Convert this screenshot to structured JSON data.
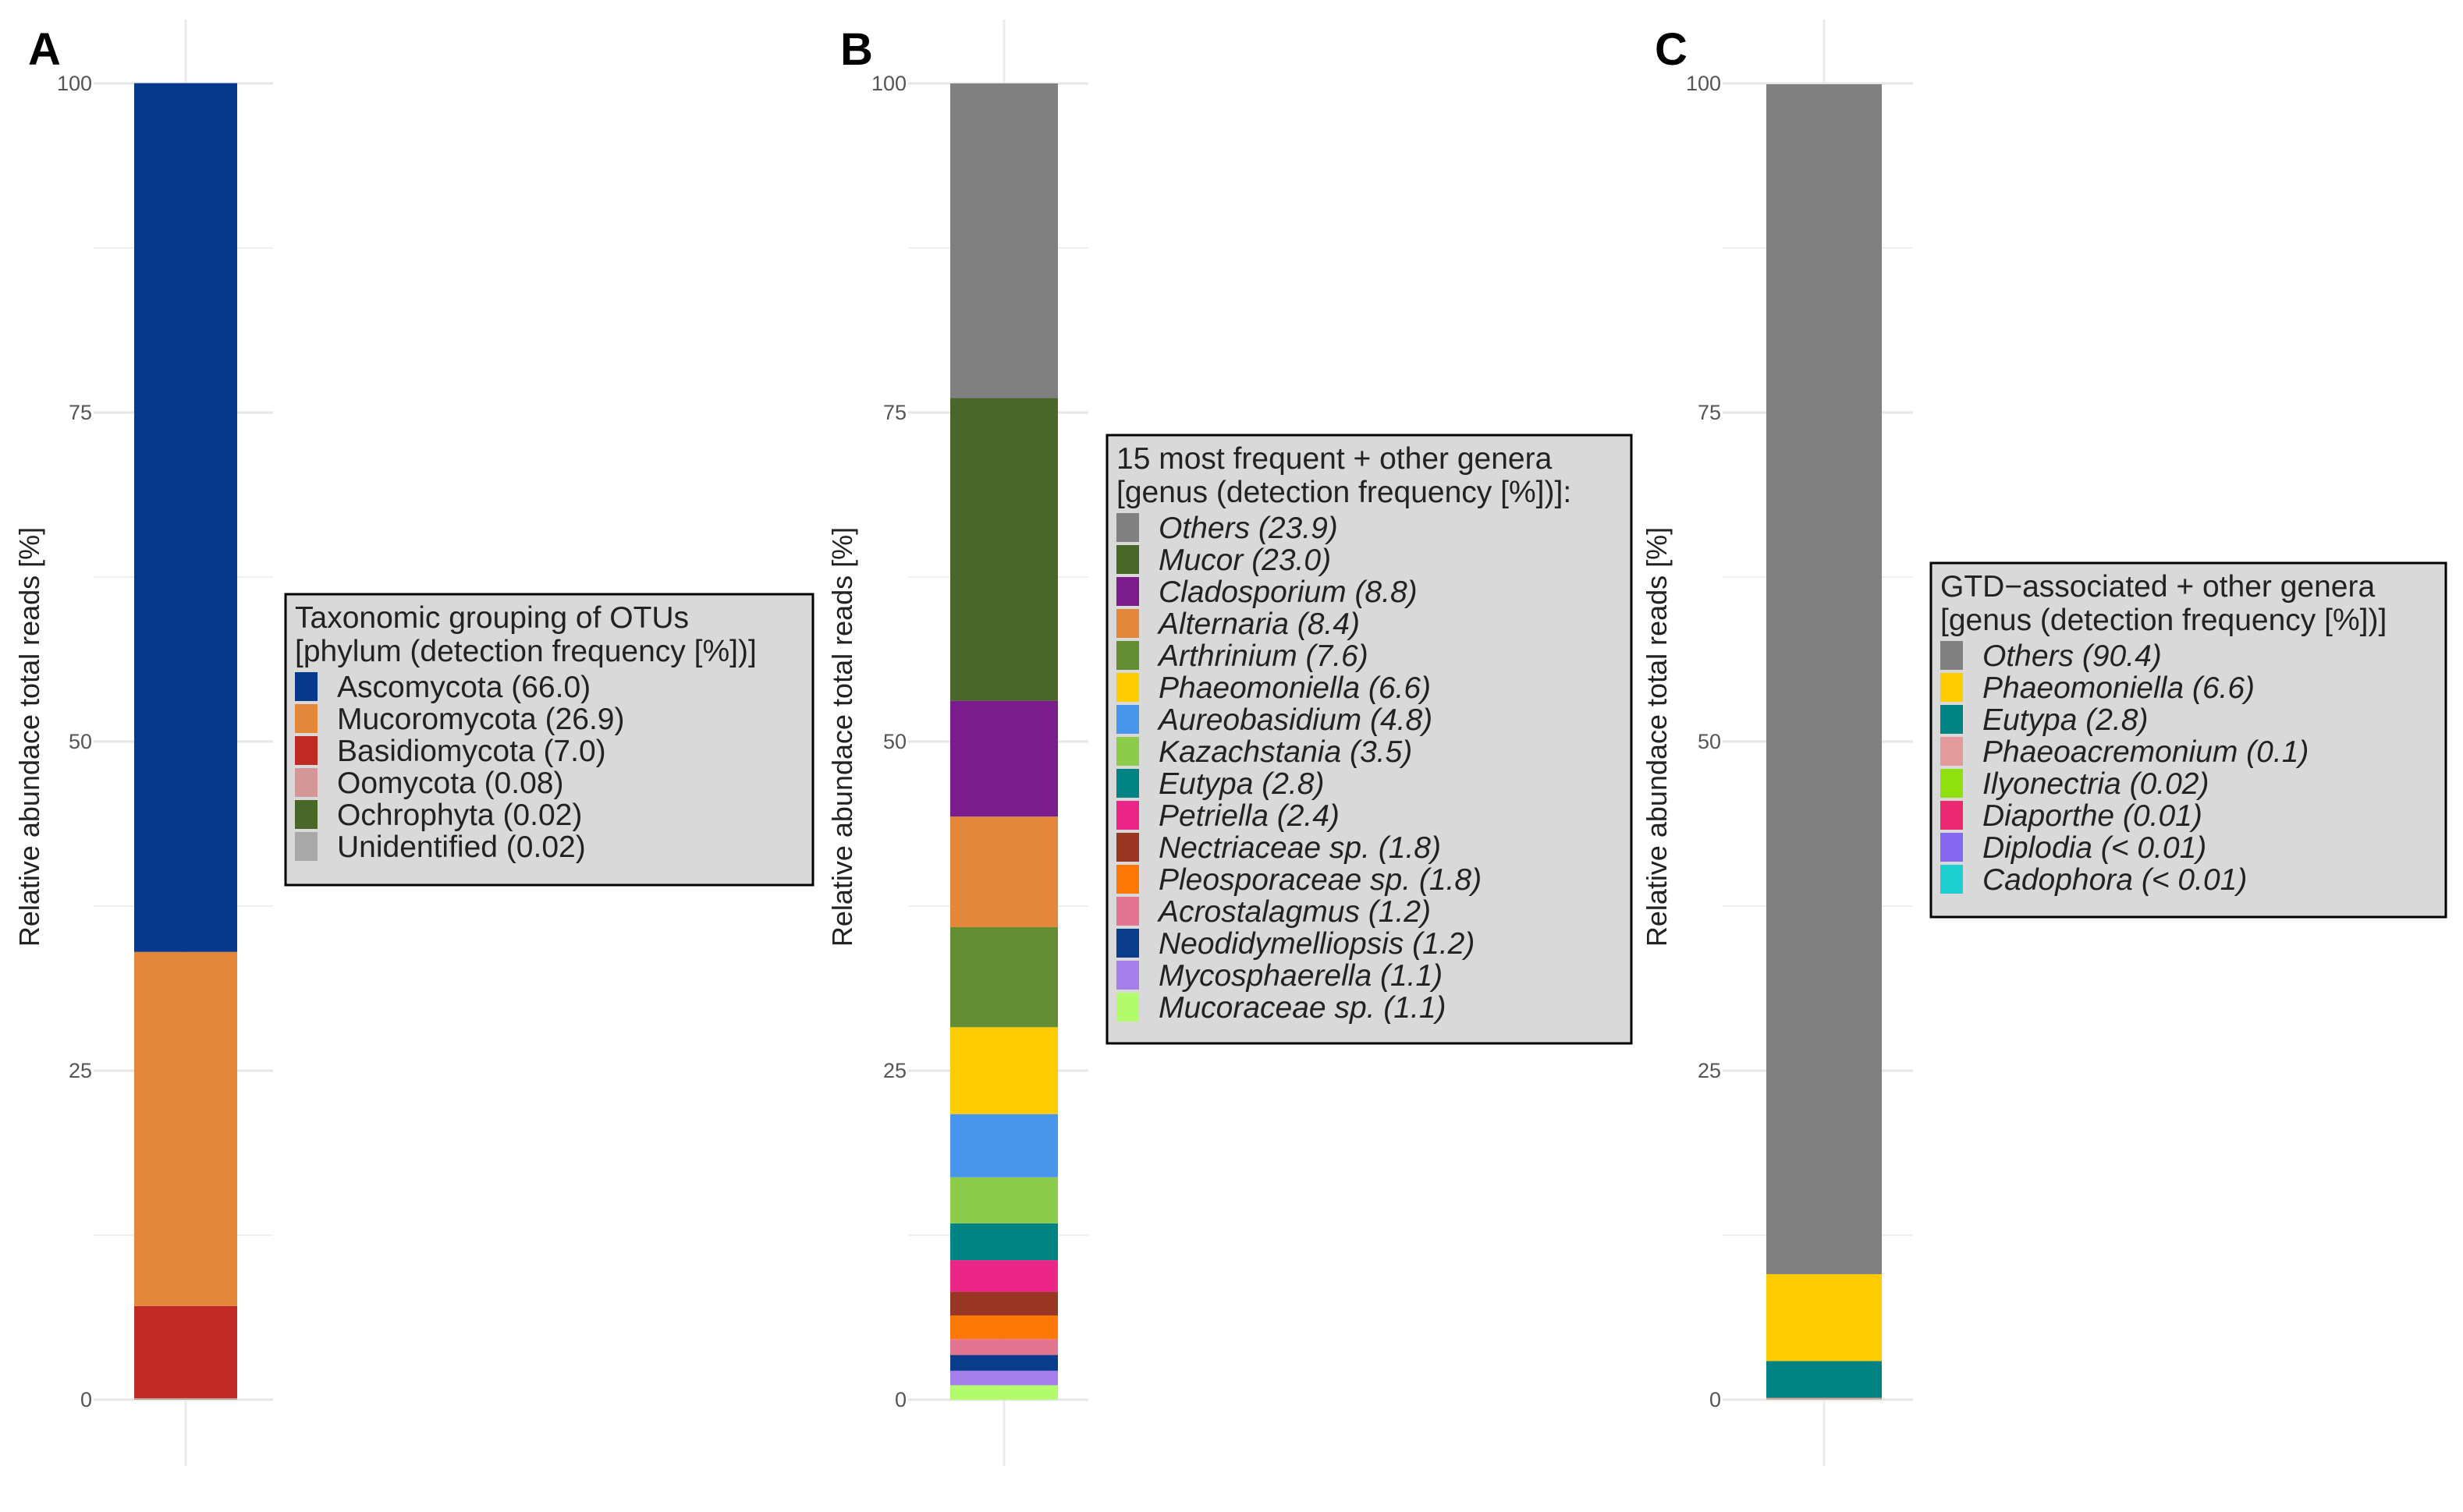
{
  "chart_data": [
    {
      "type": "bar",
      "stacked": true,
      "panel": "A",
      "ylabel": "Relative abundace total reads [%]",
      "ylim": [
        0,
        100
      ],
      "yticks": [
        0,
        25,
        50,
        75,
        100
      ],
      "legend_title": [
        "Taxonomic grouping of OTUs",
        "[phylum (detection frequency [%])]"
      ],
      "legend_italic": false,
      "legend_position": "right",
      "series": [
        {
          "name": "Ascomycota",
          "label": "Ascomycota (66.0)",
          "value": 66.0,
          "color": "#06398B"
        },
        {
          "name": "Mucoromycota",
          "label": "Mucoromycota (26.9)",
          "value": 26.9,
          "color": "#E3873A"
        },
        {
          "name": "Basidiomycota",
          "label": "Basidiomycota (7.0)",
          "value": 7.0,
          "color": "#C02A25"
        },
        {
          "name": "Oomycota",
          "label": "Oomycota (0.08)",
          "value": 0.08,
          "color": "#D29796"
        },
        {
          "name": "Ochrophyta",
          "label": "Ochrophyta (0.02)",
          "value": 0.02,
          "color": "#486728"
        },
        {
          "name": "Unidentified",
          "label": "Unidentified (0.02)",
          "value": 0.02,
          "color": "#A9A9A9"
        }
      ]
    },
    {
      "type": "bar",
      "stacked": true,
      "panel": "B",
      "ylabel": "Relative abundace total reads [%]",
      "ylim": [
        0,
        100
      ],
      "yticks": [
        0,
        25,
        50,
        75,
        100
      ],
      "legend_title": [
        "15 most frequent + other genera",
        "[genus (detection frequency [%])]:"
      ],
      "legend_italic": true,
      "legend_position": "right",
      "series": [
        {
          "name": "Others",
          "label": "Others (23.9)",
          "value": 23.9,
          "color": "#808080"
        },
        {
          "name": "Mucor",
          "label": "Mucor (23.0)",
          "value": 23.0,
          "color": "#486728"
        },
        {
          "name": "Cladosporium",
          "label": "Cladosporium (8.8)",
          "value": 8.8,
          "color": "#7A1C8B"
        },
        {
          "name": "Alternaria",
          "label": "Alternaria (8.4)",
          "value": 8.4,
          "color": "#E3873A"
        },
        {
          "name": "Arthrinium",
          "label": "Arthrinium (7.6)",
          "value": 7.6,
          "color": "#648D33"
        },
        {
          "name": "Phaeomoniella",
          "label": "Phaeomoniella (6.6)",
          "value": 6.6,
          "color": "#FECB00"
        },
        {
          "name": "Aureobasidium",
          "label": "Aureobasidium (4.8)",
          "value": 4.8,
          "color": "#4796EB"
        },
        {
          "name": "Kazachstania",
          "label": "Kazachstania (3.5)",
          "value": 3.5,
          "color": "#8DCB4B"
        },
        {
          "name": "Eutypa",
          "label": "Eutypa (2.8)",
          "value": 2.8,
          "color": "#008383"
        },
        {
          "name": "Petriella",
          "label": "Petriella (2.4)",
          "value": 2.4,
          "color": "#EC2688"
        },
        {
          "name": "Nectriaceae sp.",
          "label": "Nectriaceae sp. (1.8)",
          "value": 1.8,
          "color": "#9A3624"
        },
        {
          "name": "Pleosporaceae sp.",
          "label": "Pleosporaceae sp. (1.8)",
          "value": 1.8,
          "color": "#FC7704"
        },
        {
          "name": "Acrostalagmus",
          "label": "Acrostalagmus (1.2)",
          "value": 1.2,
          "color": "#E47592"
        },
        {
          "name": "Neodidymelliopsis",
          "label": "Neodidymelliopsis (1.2)",
          "value": 1.2,
          "color": "#0A3C8C"
        },
        {
          "name": "Mycosphaerella",
          "label": "Mycosphaerella (1.1)",
          "value": 1.1,
          "color": "#A47FEA"
        },
        {
          "name": "Mucoraceae sp.",
          "label": "Mucoraceae sp. (1.1)",
          "value": 1.1,
          "color": "#B2FB6C"
        }
      ]
    },
    {
      "type": "bar",
      "stacked": true,
      "panel": "C",
      "ylabel": "Relative abundace total reads [%]",
      "ylim": [
        0,
        100
      ],
      "yticks": [
        0,
        25,
        50,
        75,
        100
      ],
      "legend_title": [
        "GTD−associated + other genera",
        "[genus (detection frequency [%])]"
      ],
      "legend_italic": true,
      "legend_position": "right",
      "series": [
        {
          "name": "Others",
          "label": "Others (90.4)",
          "value": 90.4,
          "color": "#808080"
        },
        {
          "name": "Phaeomoniella",
          "label": "Phaeomoniella (6.6)",
          "value": 6.6,
          "color": "#FECB00"
        },
        {
          "name": "Eutypa",
          "label": "Eutypa (2.8)",
          "value": 2.8,
          "color": "#008383"
        },
        {
          "name": "Phaeoacremonium",
          "label": "Phaeoacremonium (0.1)",
          "value": 0.1,
          "color": "#E39A9A"
        },
        {
          "name": "Ilyonectria",
          "label": "Ilyonectria (0.02)",
          "value": 0.02,
          "color": "#8FE00E"
        },
        {
          "name": "Diaporthe",
          "label": "Diaporthe (0.01)",
          "value": 0.01,
          "color": "#EC2A72"
        },
        {
          "name": "Diplodia",
          "label": "Diplodia (< 0.01)",
          "value": 0.005,
          "color": "#8568F0"
        },
        {
          "name": "Cadophora",
          "label": "Cadophora (< 0.01)",
          "value": 0.005,
          "color": "#1ECFD0"
        }
      ]
    }
  ]
}
